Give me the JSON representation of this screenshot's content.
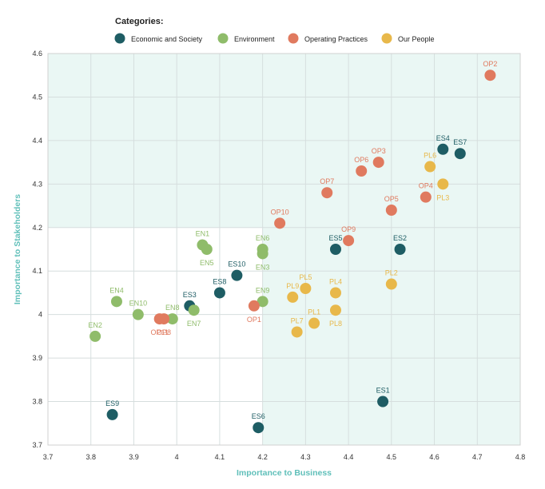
{
  "chart_data": {
    "type": "scatter",
    "xlabel": "Importance to Business",
    "ylabel": "Importance to Stakeholders",
    "xlim": [
      3.7,
      4.8
    ],
    "ylim": [
      3.7,
      4.6
    ],
    "x_ticks": [
      "3.7",
      "3.8",
      "3.9",
      "4",
      "4.1",
      "4.2",
      "4.3",
      "4.4",
      "4.5",
      "4.6",
      "4.7",
      "4.8"
    ],
    "y_ticks": [
      "3.7",
      "3.8",
      "3.9",
      "4",
      "4.1",
      "4.2",
      "4.3",
      "4.4",
      "4.5",
      "4.6"
    ],
    "grid": true,
    "legend_title": "Categories:",
    "legend_position": "top",
    "shaded_regions": [
      {
        "x": [
          3.7,
          4.8
        ],
        "y": [
          4.2,
          4.6
        ],
        "color": "#eaf7f4"
      },
      {
        "x": [
          4.2,
          4.8
        ],
        "y": [
          3.7,
          4.2
        ],
        "color": "#eaf7f4"
      }
    ],
    "series": [
      {
        "name": "Economic and Society",
        "color": "#1e5d64",
        "points": [
          {
            "label": "ES1",
            "x": 4.48,
            "y": 3.8,
            "label_pos": "top"
          },
          {
            "label": "ES2",
            "x": 4.52,
            "y": 4.15,
            "label_pos": "top"
          },
          {
            "label": "ES3",
            "x": 4.03,
            "y": 4.02,
            "label_pos": "top"
          },
          {
            "label": "ES4",
            "x": 4.62,
            "y": 4.38,
            "label_pos": "top"
          },
          {
            "label": "ES5",
            "x": 4.37,
            "y": 4.15,
            "label_pos": "top"
          },
          {
            "label": "ES6",
            "x": 4.19,
            "y": 3.74,
            "label_pos": "top"
          },
          {
            "label": "ES7",
            "x": 4.66,
            "y": 4.37,
            "label_pos": "top"
          },
          {
            "label": "ES8",
            "x": 4.1,
            "y": 4.05,
            "label_pos": "top"
          },
          {
            "label": "ES9",
            "x": 3.85,
            "y": 3.77,
            "label_pos": "top"
          },
          {
            "label": "ES10",
            "x": 4.14,
            "y": 4.09,
            "label_pos": "top"
          }
        ]
      },
      {
        "name": "Environment",
        "color": "#8fbc6a",
        "points": [
          {
            "label": "EN1",
            "x": 4.06,
            "y": 4.16,
            "label_pos": "top"
          },
          {
            "label": "EN2",
            "x": 3.81,
            "y": 3.95,
            "label_pos": "top"
          },
          {
            "label": "EN3",
            "x": 4.2,
            "y": 4.14,
            "label_pos": "bottom"
          },
          {
            "label": "EN4",
            "x": 3.86,
            "y": 4.03,
            "label_pos": "top"
          },
          {
            "label": "EN5",
            "x": 4.07,
            "y": 4.15,
            "label_pos": "bottom"
          },
          {
            "label": "EN6",
            "x": 4.2,
            "y": 4.15,
            "label_pos": "top"
          },
          {
            "label": "EN7",
            "x": 4.04,
            "y": 4.01,
            "label_pos": "bottom"
          },
          {
            "label": "EN8",
            "x": 3.99,
            "y": 3.99,
            "label_pos": "top"
          },
          {
            "label": "EN9",
            "x": 4.2,
            "y": 4.03,
            "label_pos": "top"
          },
          {
            "label": "EN10",
            "x": 3.91,
            "y": 4.0,
            "label_pos": "top"
          }
        ]
      },
      {
        "name": "Operating Practices",
        "color": "#e07a5f",
        "points": [
          {
            "label": "OP1",
            "x": 4.18,
            "y": 4.02,
            "label_pos": "bottom"
          },
          {
            "label": "OP2",
            "x": 4.73,
            "y": 4.55,
            "label_pos": "top"
          },
          {
            "label": "OP3",
            "x": 4.47,
            "y": 4.35,
            "label_pos": "top"
          },
          {
            "label": "OP4",
            "x": 4.58,
            "y": 4.27,
            "label_pos": "top"
          },
          {
            "label": "OP5",
            "x": 4.5,
            "y": 4.24,
            "label_pos": "top"
          },
          {
            "label": "OP6",
            "x": 4.43,
            "y": 4.33,
            "label_pos": "top"
          },
          {
            "label": "OP7",
            "x": 4.35,
            "y": 4.28,
            "label_pos": "top"
          },
          {
            "label": "OP8",
            "x": 3.97,
            "y": 3.99,
            "label_pos": "bottom"
          },
          {
            "label": "OP9",
            "x": 4.4,
            "y": 4.17,
            "label_pos": "top"
          },
          {
            "label": "OP10",
            "x": 4.24,
            "y": 4.21,
            "label_pos": "top"
          },
          {
            "label": "OP11",
            "x": 3.96,
            "y": 3.99,
            "label_pos": "bottom"
          }
        ]
      },
      {
        "name": "Our People",
        "color": "#e8b84a",
        "points": [
          {
            "label": "PL1",
            "x": 4.32,
            "y": 3.98,
            "label_pos": "top"
          },
          {
            "label": "PL2",
            "x": 4.5,
            "y": 4.07,
            "label_pos": "top"
          },
          {
            "label": "PL3",
            "x": 4.62,
            "y": 4.3,
            "label_pos": "bottom"
          },
          {
            "label": "PL4",
            "x": 4.37,
            "y": 4.05,
            "label_pos": "top"
          },
          {
            "label": "PL5",
            "x": 4.3,
            "y": 4.06,
            "label_pos": "top"
          },
          {
            "label": "PL6",
            "x": 4.59,
            "y": 4.34,
            "label_pos": "top"
          },
          {
            "label": "PL7",
            "x": 4.28,
            "y": 3.96,
            "label_pos": "top"
          },
          {
            "label": "PL8",
            "x": 4.37,
            "y": 4.01,
            "label_pos": "bottom"
          },
          {
            "label": "PL9",
            "x": 4.27,
            "y": 4.04,
            "label_pos": "top"
          }
        ]
      }
    ]
  }
}
